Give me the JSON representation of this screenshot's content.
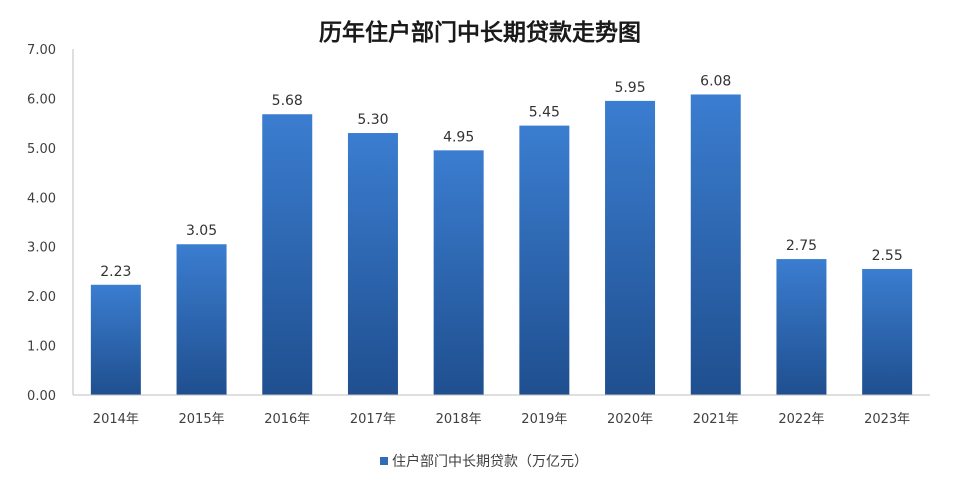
{
  "chart_data": {
    "type": "bar",
    "title": "历年住户部门中长期贷款走势图",
    "categories": [
      "2014年",
      "2015年",
      "2016年",
      "2017年",
      "2018年",
      "2019年",
      "2020年",
      "2021年",
      "2022年",
      "2023年"
    ],
    "series": [
      {
        "name": "住户部门中长期贷款（万亿元）",
        "values": [
          2.23,
          3.05,
          5.68,
          5.3,
          4.95,
          5.45,
          5.95,
          6.08,
          2.75,
          2.55
        ],
        "labels": [
          "2.23",
          "3.05",
          "5.68",
          "5.30",
          "4.95",
          "5.45",
          "5.95",
          "6.08",
          "2.75",
          "2.55"
        ]
      }
    ],
    "xlabel": "",
    "ylabel": "",
    "ylim": [
      0,
      7
    ],
    "yticks": [
      "0.00",
      "1.00",
      "2.00",
      "3.00",
      "4.00",
      "5.00",
      "6.00",
      "7.00"
    ],
    "grid": false,
    "legend_position": "bottom",
    "colors": {
      "bar_top": "#3b7dd0",
      "bar_bottom": "#1f4f8f",
      "axis": "#bfbfbf",
      "legend_swatch": "#2f6db8"
    }
  }
}
